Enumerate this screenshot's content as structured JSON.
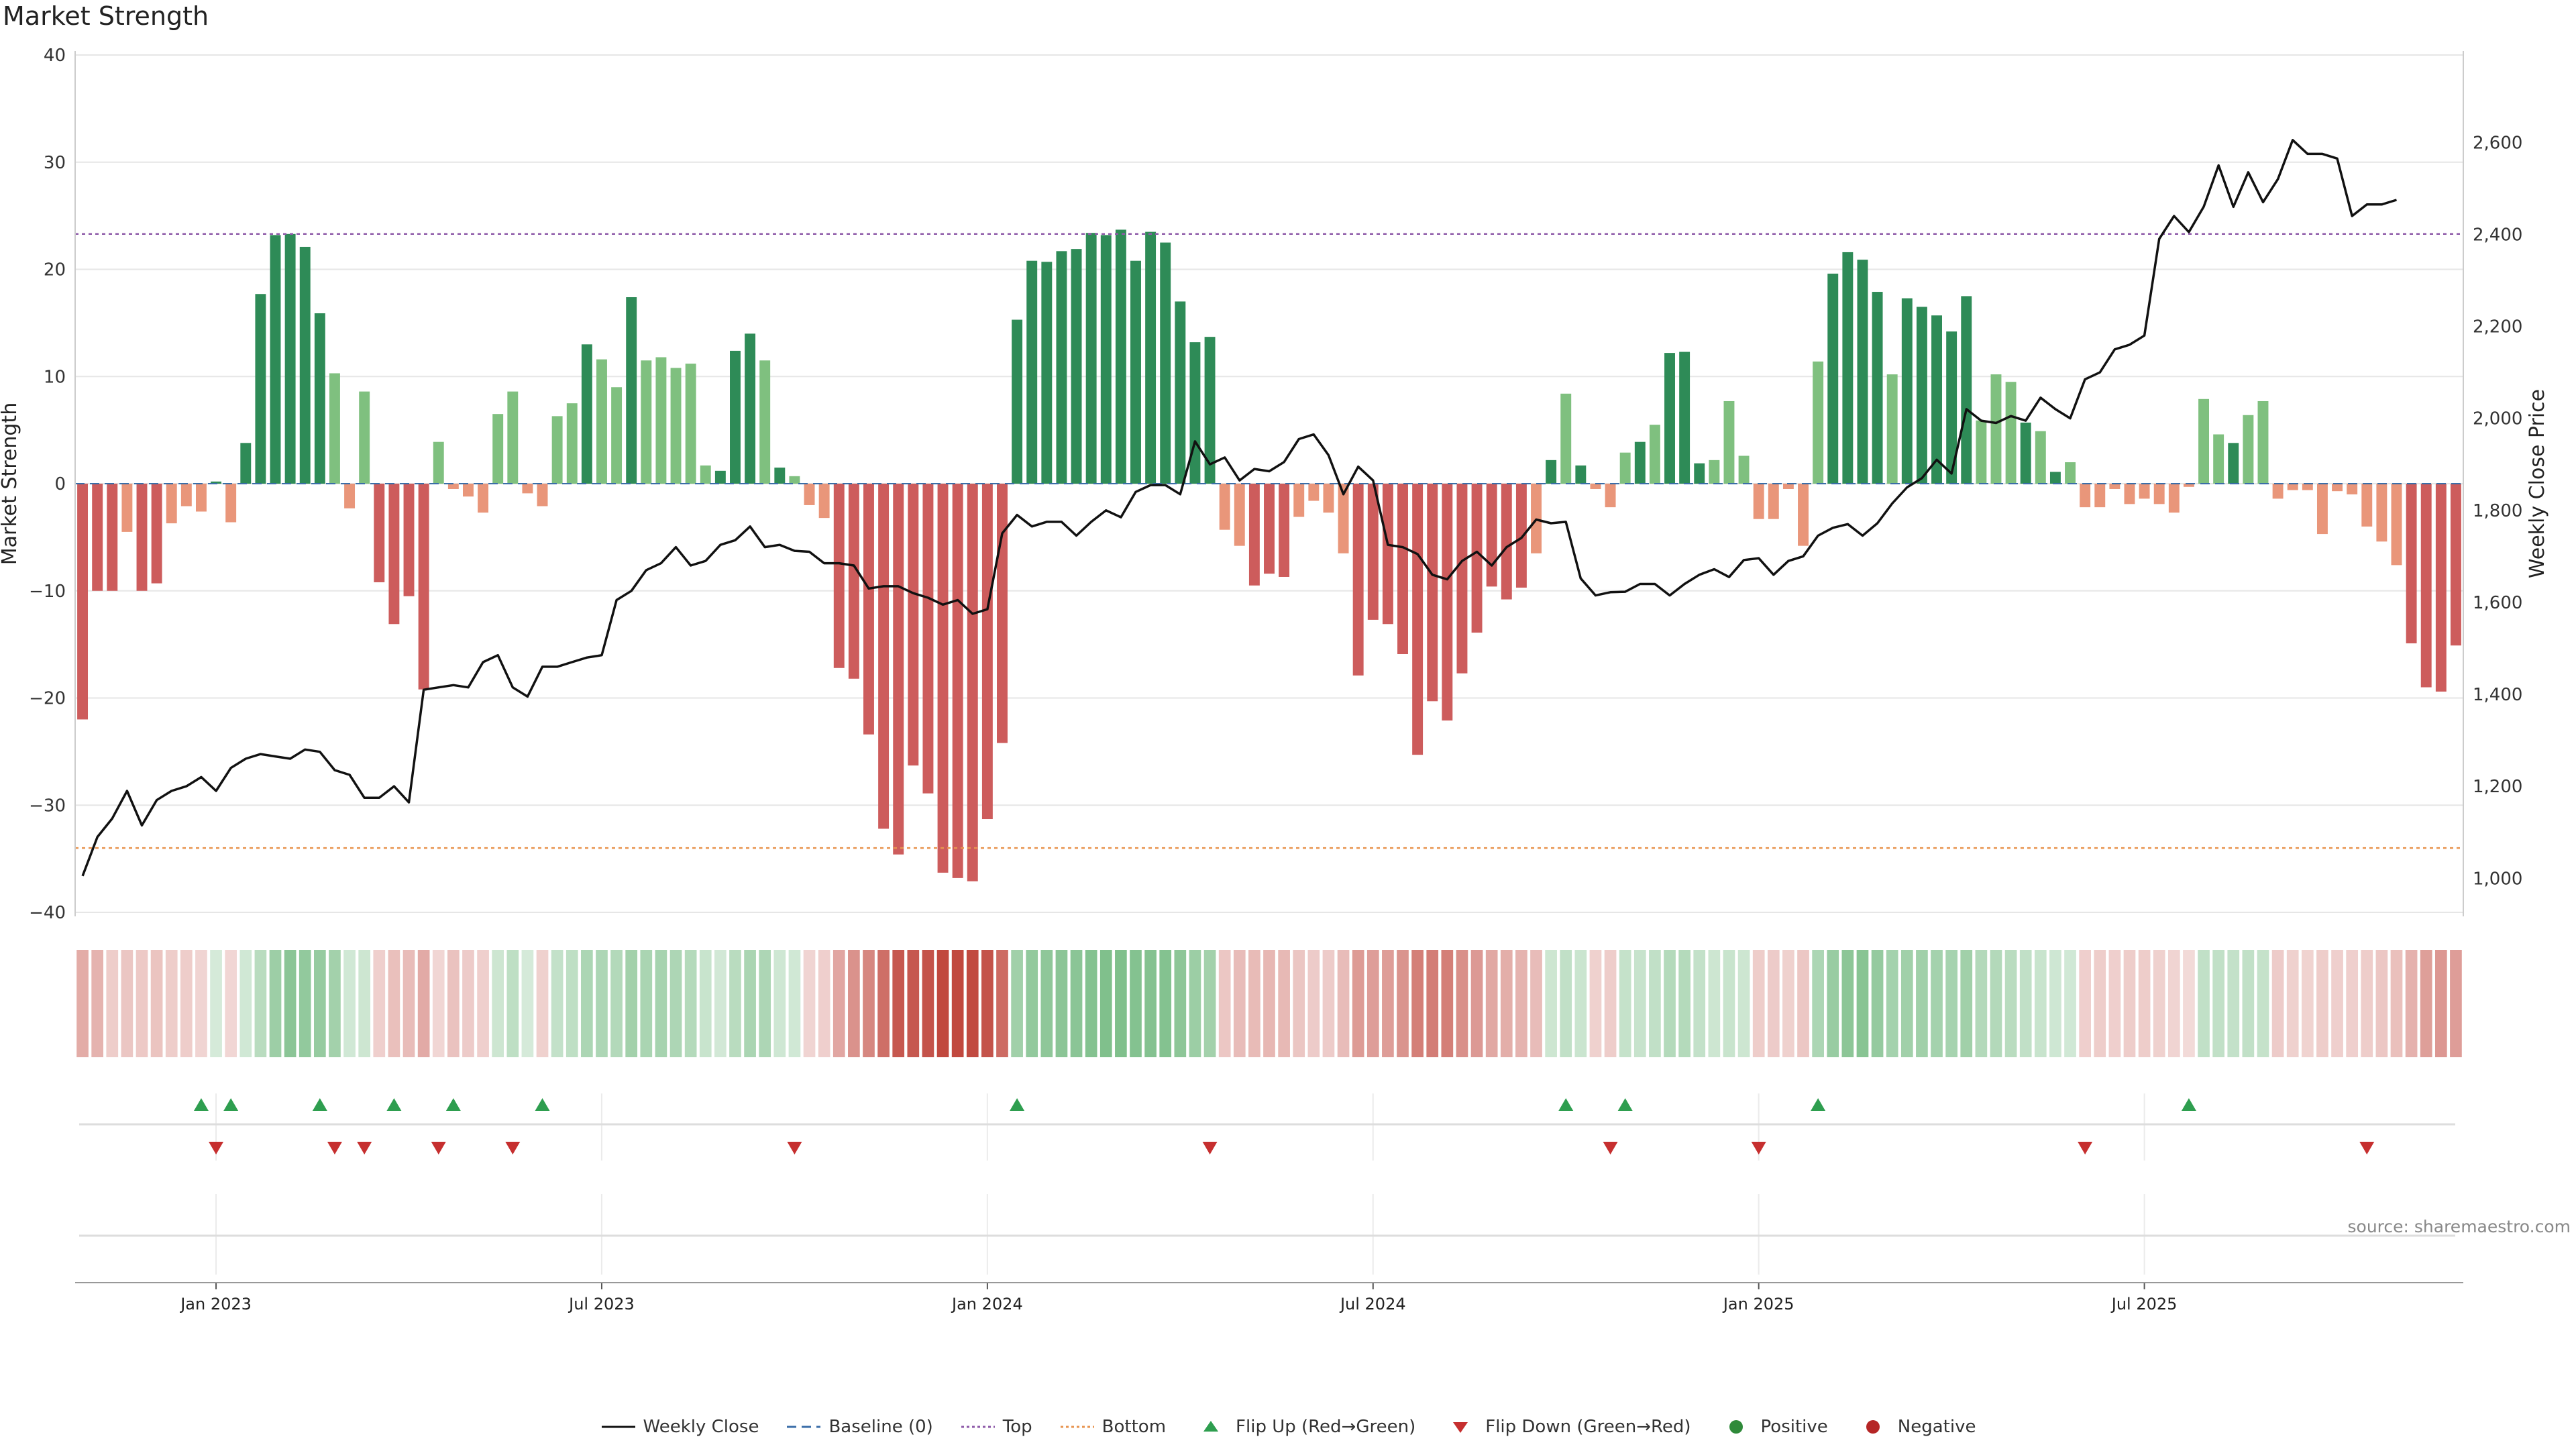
{
  "title": "Market Strength",
  "source_note": "source: sharemaestro.com",
  "chart_data": {
    "type": "bar",
    "left_axis": {
      "label": "Market Strength",
      "ticks": [
        40,
        30,
        20,
        10,
        0,
        -10,
        -20,
        -30,
        -40
      ],
      "range": [
        -40,
        40
      ]
    },
    "right_axis": {
      "label": "Weekly Close Price",
      "ticks": [
        "2,600",
        "2,400",
        "2,200",
        "2,000",
        "1,800",
        "1,600",
        "1,400",
        "1,200",
        "1,000"
      ],
      "tick_values": [
        2600,
        2400,
        2200,
        2000,
        1800,
        1600,
        1400,
        1200,
        1000
      ],
      "range": [
        926,
        2790
      ]
    },
    "x_axis": {
      "ticks": [
        "Jan 2023",
        "Jul 2023",
        "Jan 2024",
        "Jul 2024",
        "Jan 2025",
        "Jul 2025"
      ]
    },
    "top_threshold": 23.3,
    "bottom_threshold": -34,
    "strength": [
      -22,
      -10,
      -10,
      -4.5,
      -10,
      -9.3,
      -3.7,
      -2.1,
      -2.6,
      0.2,
      -3.6,
      3.8,
      17.7,
      23.2,
      23.3,
      22.1,
      15.9,
      10.3,
      -2.3,
      8.6,
      -9.2,
      -13.1,
      -10.5,
      -19.2,
      3.9,
      -0.5,
      -1.2,
      -2.7,
      6.5,
      8.6,
      -0.9,
      -2.1,
      6.3,
      7.5,
      13,
      11.6,
      9,
      17.4,
      11.5,
      11.8,
      10.8,
      11.2,
      1.7,
      1.2,
      12.4,
      14,
      11.5,
      1.5,
      0.7,
      -2,
      -3.2,
      -17.2,
      -18.2,
      -23.4,
      -32.2,
      -34.6,
      -26.3,
      -28.9,
      -36.3,
      -36.8,
      -37.1,
      -31.3,
      -24.2,
      15.3,
      20.8,
      20.7,
      21.7,
      21.9,
      23.4,
      23.2,
      23.7,
      20.8,
      23.5,
      22.5,
      17,
      13.2,
      13.7,
      -4.3,
      -5.8,
      -9.5,
      -8.4,
      -8.7,
      -3.1,
      -1.6,
      -2.7,
      -6.5,
      -17.9,
      -12.7,
      -13.1,
      -15.9,
      -25.3,
      -20.3,
      -22.1,
      -17.7,
      -13.9,
      -9.6,
      -10.8,
      -9.7,
      -6.5,
      2.2,
      8.4,
      1.7,
      -0.5,
      -2.2,
      2.9,
      3.9,
      5.5,
      12.2,
      12.3,
      1.9,
      2.2,
      7.7,
      2.6,
      -3.3,
      -3.3,
      -0.5,
      -5.8,
      11.4,
      19.6,
      21.6,
      20.9,
      17.9,
      10.2,
      17.3,
      16.5,
      15.7,
      14.2,
      17.5,
      5.9,
      10.2,
      9.5,
      5.7,
      4.9,
      1.1,
      2,
      -2.2,
      -2.2,
      -0.5,
      -1.9,
      -1.4,
      -1.9,
      -2.7,
      -0.3,
      7.9,
      4.6,
      3.8,
      6.4,
      7.7,
      -1.4,
      -0.6,
      -0.6,
      -4.7,
      -0.7,
      -1,
      -4,
      -5.4,
      -7.6,
      -14.9,
      -19,
      -19.4,
      -15.1
    ],
    "weekly_close": [
      1005,
      1090,
      1130,
      1190,
      1115,
      1170,
      1190,
      1200,
      1220,
      1190,
      1240,
      1260,
      1270,
      1265,
      1260,
      1280,
      1275,
      1235,
      1225,
      1175,
      1175,
      1200,
      1165,
      1410,
      1415,
      1420,
      1415,
      1470,
      1485,
      1415,
      1395,
      1460,
      1460,
      1470,
      1480,
      1485,
      1605,
      1625,
      1670,
      1685,
      1720,
      1680,
      1690,
      1725,
      1735,
      1765,
      1720,
      1725,
      1712,
      1710,
      1685,
      1685,
      1680,
      1630,
      1635,
      1635,
      1620,
      1610,
      1595,
      1605,
      1575,
      1585,
      1750,
      1790,
      1765,
      1775,
      1775,
      1745,
      1775,
      1800,
      1785,
      1840,
      1855,
      1855,
      1835,
      1950,
      1900,
      1915,
      1865,
      1890,
      1885,
      1905,
      1955,
      1965,
      1920,
      1835,
      1895,
      1865,
      1725,
      1720,
      1705,
      1660,
      1650,
      1690,
      1710,
      1680,
      1720,
      1740,
      1780,
      1772,
      1775,
      1652,
      1615,
      1622,
      1623,
      1640,
      1640,
      1615,
      1640,
      1660,
      1672,
      1655,
      1692,
      1696,
      1660,
      1690,
      1700,
      1745,
      1762,
      1770,
      1745,
      1772,
      1815,
      1850,
      1870,
      1910,
      1880,
      2020,
      1995,
      1990,
      2005,
      1995,
      2045,
      2020,
      2000,
      2085,
      2100,
      2150,
      2160,
      2180,
      2390,
      2440,
      2405,
      2460,
      2550,
      2460,
      2535,
      2470,
      2520,
      2605,
      2575,
      2575,
      2565,
      2440,
      2465,
      2465,
      2475
    ],
    "heat_row": [
      -11.5,
      -9.6,
      -3.4,
      -5,
      -4.1,
      -5.6,
      -3.2,
      -3.3,
      -1.6,
      1.4,
      -0.9,
      2.6,
      8.7,
      15.9,
      20.5,
      18.7,
      17.5,
      14.3,
      3,
      3.9,
      -3,
      -6.5,
      -7.3,
      -12,
      -0.7,
      -6.2,
      -3.5,
      -3,
      3.9,
      7.5,
      1.4,
      -2.2,
      5.8,
      7.6,
      11.8,
      11.7,
      10.3,
      14.2,
      12.6,
      13.2,
      11.7,
      9.9,
      4.4,
      2.1,
      8.7,
      12.5,
      11.4,
      3.4,
      2.8,
      -1.6,
      -2.9,
      -12.9,
      -17.9,
      -21,
      -26.9,
      -32.5,
      -32.4,
      -33.9,
      -36.4,
      -36.6,
      -36.1,
      -33.8,
      -27.7,
      14.6,
      18.5,
      19.2,
      20.3,
      20.4,
      22.2,
      23.1,
      23.2,
      22.2,
      22.3,
      22.3,
      19.8,
      16.1,
      14.4,
      -4.6,
      -7.4,
      -7.9,
      -8.9,
      -8.5,
      -5.2,
      -3.7,
      -3.6,
      -7.2,
      -15.8,
      -15.1,
      -15.2,
      -17.8,
      -22.6,
      -23.1,
      -22.6,
      -18.4,
      -16.4,
      -12.7,
      -11.3,
      -9.6,
      -7.4,
      3.8,
      6.5,
      4.3,
      -2.1,
      -3.4,
      5.5,
      4.9,
      6.3,
      9.5,
      9.7,
      6.1,
      3.7,
      4.4,
      3.9,
      -3.4,
      -3.9,
      -2.2,
      -4.5,
      12.2,
      17.3,
      19.9,
      21.1,
      18.1,
      14,
      14.9,
      14.8,
      13.9,
      13.3,
      14.7,
      10.1,
      10.3,
      8.9,
      6.6,
      4.7,
      3.2,
      3,
      -2.6,
      -3.3,
      -2.8,
      -3.4,
      -3.1,
      -2.3,
      -1.5,
      -0.1,
      6.6,
      6.4,
      5.8,
      6.3,
      5.6,
      -3.6,
      -2.5,
      -1.7,
      -3.2,
      -3,
      -2.9,
      -3.4,
      -4.4,
      -6.6,
      -10.2,
      -14.7,
      -16.6,
      -15.2
    ],
    "flip_up_weeks": [
      8,
      10,
      16,
      21,
      25,
      31,
      63,
      100,
      104,
      117,
      142
    ],
    "flip_down_weeks": [
      9,
      17,
      19,
      24,
      29,
      48,
      76,
      103,
      113,
      135,
      154
    ],
    "legend": [
      {
        "label": "Weekly Close",
        "kind": "line",
        "color": "#111111"
      },
      {
        "label": "Baseline (0)",
        "kind": "dash",
        "color": "#3b6ea8"
      },
      {
        "label": "Top",
        "kind": "dots",
        "color": "#8e5aa8"
      },
      {
        "label": "Bottom",
        "kind": "dots",
        "color": "#e8944f"
      },
      {
        "label": "Flip Up (Red→Green)",
        "kind": "up",
        "color": "#2e9e4f"
      },
      {
        "label": "Flip Down (Green→Red)",
        "kind": "down",
        "color": "#c62f2f"
      },
      {
        "label": "Positive",
        "kind": "dot",
        "color": "#2f8a3a"
      },
      {
        "label": "Negative",
        "kind": "dot",
        "color": "#b52626"
      }
    ],
    "colors": {
      "pos_strong": "#2e8b57",
      "pos_weak": "#7fc07f",
      "neg_strong": "#cd5c5c",
      "neg_weak": "#e9967a",
      "heat_pos": "#4aa55b",
      "heat_neg": "#c0463c",
      "grid": "#e6e6e6",
      "line": "#111111"
    }
  }
}
